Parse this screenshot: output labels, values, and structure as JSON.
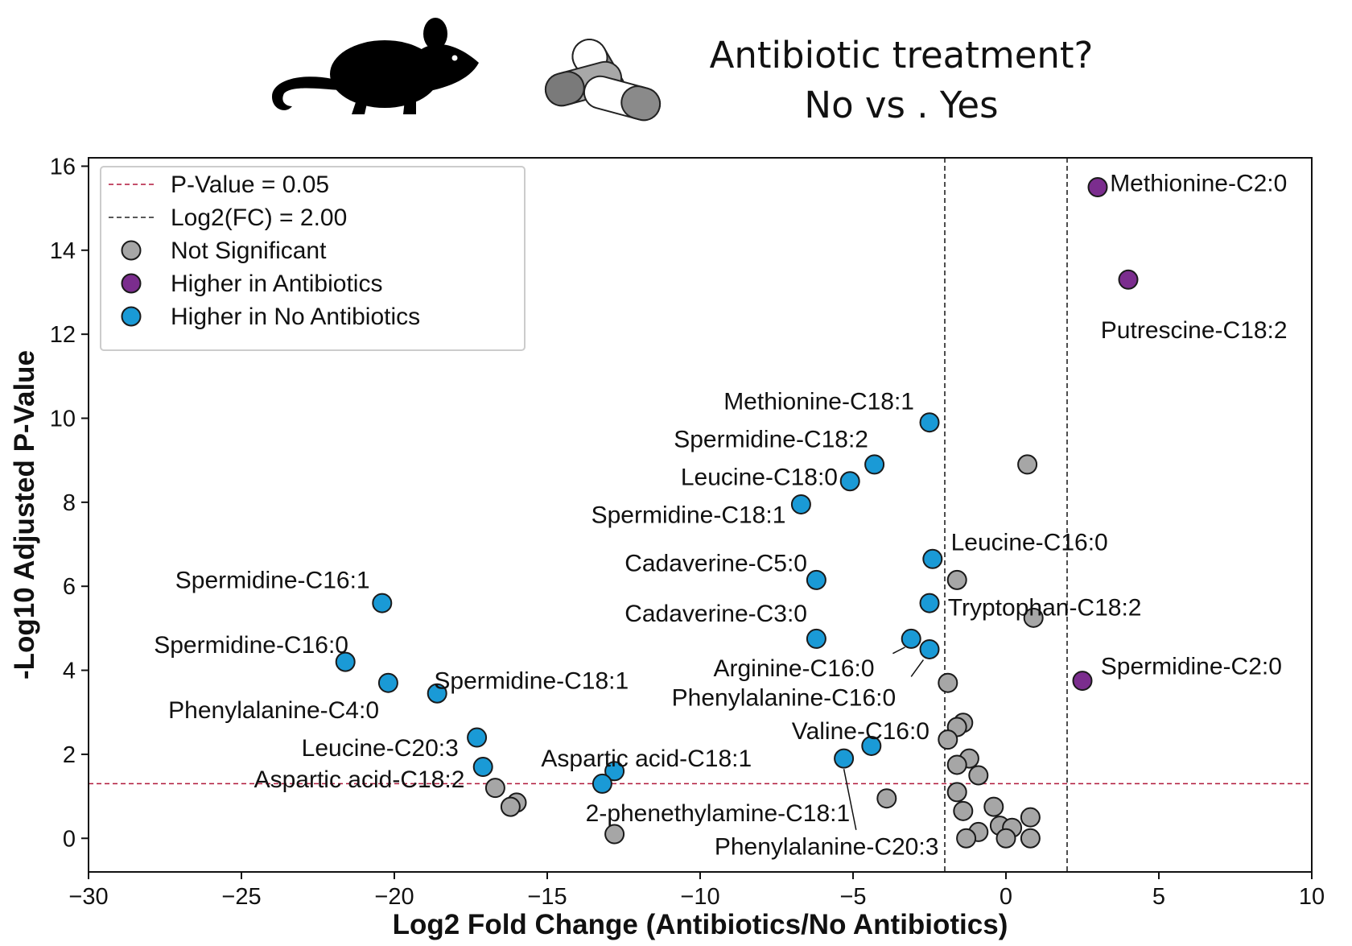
{
  "header": {
    "title_line1": "Antibiotic treatment?",
    "title_line2": "No vs . Yes",
    "icons": [
      "mouse-icon",
      "pills-icon"
    ]
  },
  "chart_data": {
    "type": "scatter",
    "xlabel": "Log2 Fold Change (Antibiotics/No Antibiotics)",
    "ylabel": "-Log10 Adjusted P-Value",
    "xlim": [
      -30,
      10
    ],
    "ylim": [
      -0.8,
      16.2
    ],
    "xticks": [
      -30,
      -25,
      -20,
      -15,
      -10,
      -5,
      0,
      5,
      10
    ],
    "yticks": [
      0,
      2,
      4,
      6,
      8,
      10,
      12,
      14,
      16
    ],
    "grid": false,
    "legend_position": "top-left",
    "pvalue_threshold": {
      "label": "P-Value = 0.05",
      "y": 1.301,
      "color": "#b0173a"
    },
    "fc_threshold": {
      "label": "Log2(FC)  = 2.00",
      "x": [
        -2,
        2
      ],
      "color": "#222222"
    },
    "legend": [
      {
        "label": "P-Value = 0.05",
        "kind": "line",
        "color": "#b0173a"
      },
      {
        "label": "Log2(FC)  = 2.00",
        "kind": "line",
        "color": "#222222"
      },
      {
        "label": "Not Significant",
        "kind": "marker",
        "color": "#a6a6a6"
      },
      {
        "label": "Higher in Antibiotics",
        "kind": "marker",
        "color": "#7b2d8e"
      },
      {
        "label": "Higher in No Antibiotics",
        "kind": "marker",
        "color": "#1a9ad6"
      }
    ],
    "colors": {
      "ns": "#a6a6a6",
      "up": "#7b2d8e",
      "down": "#1a9ad6"
    },
    "points": [
      {
        "x": 3.0,
        "y": 15.5,
        "group": "up",
        "label": "Methionine-C2:0",
        "lx": 3.4,
        "ly": 15.6,
        "anchor": "start"
      },
      {
        "x": 4.0,
        "y": 13.3,
        "group": "up",
        "label": "Putrescine-C18:2",
        "lx": 3.1,
        "ly": 12.1,
        "anchor": "start"
      },
      {
        "x": 2.5,
        "y": 3.75,
        "group": "up",
        "label": "Spermidine-C2:0",
        "lx": 3.1,
        "ly": 4.1,
        "anchor": "start"
      },
      {
        "x": -2.5,
        "y": 9.9,
        "group": "down",
        "label": "Methionine-C18:1",
        "lx": -3.0,
        "ly": 10.4,
        "anchor": "end"
      },
      {
        "x": -4.3,
        "y": 8.9,
        "group": "down",
        "label": "Spermidine-C18:2",
        "lx": -4.5,
        "ly": 9.5,
        "anchor": "end"
      },
      {
        "x": -5.1,
        "y": 8.5,
        "group": "down",
        "label": "Leucine-C18:0",
        "lx": -5.5,
        "ly": 8.6,
        "anchor": "end"
      },
      {
        "x": -6.7,
        "y": 7.95,
        "group": "down",
        "label": "Spermidine-C18:1",
        "lx": -7.2,
        "ly": 7.7,
        "anchor": "end"
      },
      {
        "x": -2.4,
        "y": 6.65,
        "group": "down",
        "label": "Leucine-C16:0",
        "lx": -1.8,
        "ly": 7.05,
        "anchor": "start"
      },
      {
        "x": -6.2,
        "y": 6.15,
        "group": "down",
        "label": "Cadaverine-C5:0",
        "lx": -6.5,
        "ly": 6.55,
        "anchor": "end"
      },
      {
        "x": -2.5,
        "y": 5.6,
        "group": "down"
      },
      {
        "x": -6.2,
        "y": 4.75,
        "group": "down",
        "label": "Cadaverine-C3:0",
        "lx": -6.5,
        "ly": 5.35,
        "anchor": "end"
      },
      {
        "x": -3.1,
        "y": 4.75,
        "group": "down",
        "label": "Arginine-C16:0",
        "lx": -4.3,
        "ly": 4.05,
        "anchor": "end",
        "leader": [
          -3.7,
          4.4,
          -3.3,
          4.55
        ]
      },
      {
        "x": -2.5,
        "y": 4.5,
        "group": "down",
        "label": "Phenylalanine-C16:0",
        "lx": -3.6,
        "ly": 3.35,
        "anchor": "end",
        "leader": [
          -3.1,
          3.85,
          -2.7,
          4.25
        ]
      },
      {
        "x": -20.4,
        "y": 5.6,
        "group": "down",
        "label": "Spermidine-C16:1",
        "lx": -20.8,
        "ly": 6.15,
        "anchor": "end"
      },
      {
        "x": -21.6,
        "y": 4.2,
        "group": "down",
        "label": "Spermidine-C16:0",
        "lx": -21.5,
        "ly": 4.6,
        "anchor": "end"
      },
      {
        "x": -20.2,
        "y": 3.7,
        "group": "down",
        "label": "Phenylalanine-C4:0",
        "lx": -20.5,
        "ly": 3.05,
        "anchor": "end"
      },
      {
        "x": -18.6,
        "y": 3.45,
        "group": "down",
        "label": "Spermidine-C18:1",
        "lx": -18.7,
        "ly": 3.75,
        "anchor": "start"
      },
      {
        "x": -17.3,
        "y": 2.4,
        "group": "down",
        "label": "Leucine-C20:3",
        "lx": -17.9,
        "ly": 2.15,
        "anchor": "end"
      },
      {
        "x": -17.1,
        "y": 1.7,
        "group": "down",
        "label": "Aspartic acid-C18:2",
        "lx": -17.7,
        "ly": 1.4,
        "anchor": "end"
      },
      {
        "x": -12.8,
        "y": 1.6,
        "group": "down",
        "label": "Aspartic acid-C18:1",
        "lx": -15.2,
        "ly": 1.9,
        "anchor": "start"
      },
      {
        "x": -13.2,
        "y": 1.3,
        "group": "down"
      },
      {
        "x": -4.4,
        "y": 2.2,
        "group": "down",
        "label": "Valine-C16:0",
        "lx": -2.5,
        "ly": 2.55,
        "anchor": "end"
      },
      {
        "x": -5.3,
        "y": 1.9,
        "group": "down",
        "label": "Phenylalanine-C20:3",
        "lx": -2.2,
        "ly": -0.2,
        "anchor": "end",
        "leader": [
          -5.3,
          1.65,
          -4.9,
          0.2
        ]
      },
      {
        "x": 0.7,
        "y": 8.9,
        "group": "ns"
      },
      {
        "x": -1.6,
        "y": 6.15,
        "group": "ns"
      },
      {
        "x": 0.9,
        "y": 5.25,
        "group": "ns",
        "label": "Tryptophan-C18:2",
        "lx": -1.9,
        "ly": 5.5,
        "anchor": "start"
      },
      {
        "x": -1.9,
        "y": 3.7,
        "group": "ns"
      },
      {
        "x": -1.4,
        "y": 2.75,
        "group": "ns"
      },
      {
        "x": -1.6,
        "y": 2.65,
        "group": "ns"
      },
      {
        "x": -1.9,
        "y": 2.35,
        "group": "ns"
      },
      {
        "x": -1.2,
        "y": 1.9,
        "group": "ns"
      },
      {
        "x": -1.6,
        "y": 1.75,
        "group": "ns"
      },
      {
        "x": -0.9,
        "y": 1.5,
        "group": "ns"
      },
      {
        "x": -1.6,
        "y": 1.1,
        "group": "ns"
      },
      {
        "x": -3.9,
        "y": 0.95,
        "group": "ns"
      },
      {
        "x": -0.4,
        "y": 0.75,
        "group": "ns"
      },
      {
        "x": -1.4,
        "y": 0.65,
        "group": "ns"
      },
      {
        "x": -0.2,
        "y": 0.3,
        "group": "ns"
      },
      {
        "x": 0.2,
        "y": 0.25,
        "group": "ns"
      },
      {
        "x": 0.8,
        "y": 0.5,
        "group": "ns"
      },
      {
        "x": -0.9,
        "y": 0.15,
        "group": "ns"
      },
      {
        "x": -1.3,
        "y": 0.0,
        "group": "ns"
      },
      {
        "x": 0.0,
        "y": 0.0,
        "group": "ns"
      },
      {
        "x": 0.8,
        "y": 0.0,
        "group": "ns"
      },
      {
        "x": -16.7,
        "y": 1.2,
        "group": "ns"
      },
      {
        "x": -16.0,
        "y": 0.85,
        "group": "ns"
      },
      {
        "x": -16.2,
        "y": 0.75,
        "group": "ns"
      },
      {
        "x": -12.8,
        "y": 0.1,
        "group": "ns",
        "label": "2-phenethylamine-C18:1",
        "lx": -5.1,
        "ly": 0.6,
        "anchor": "end"
      }
    ]
  }
}
